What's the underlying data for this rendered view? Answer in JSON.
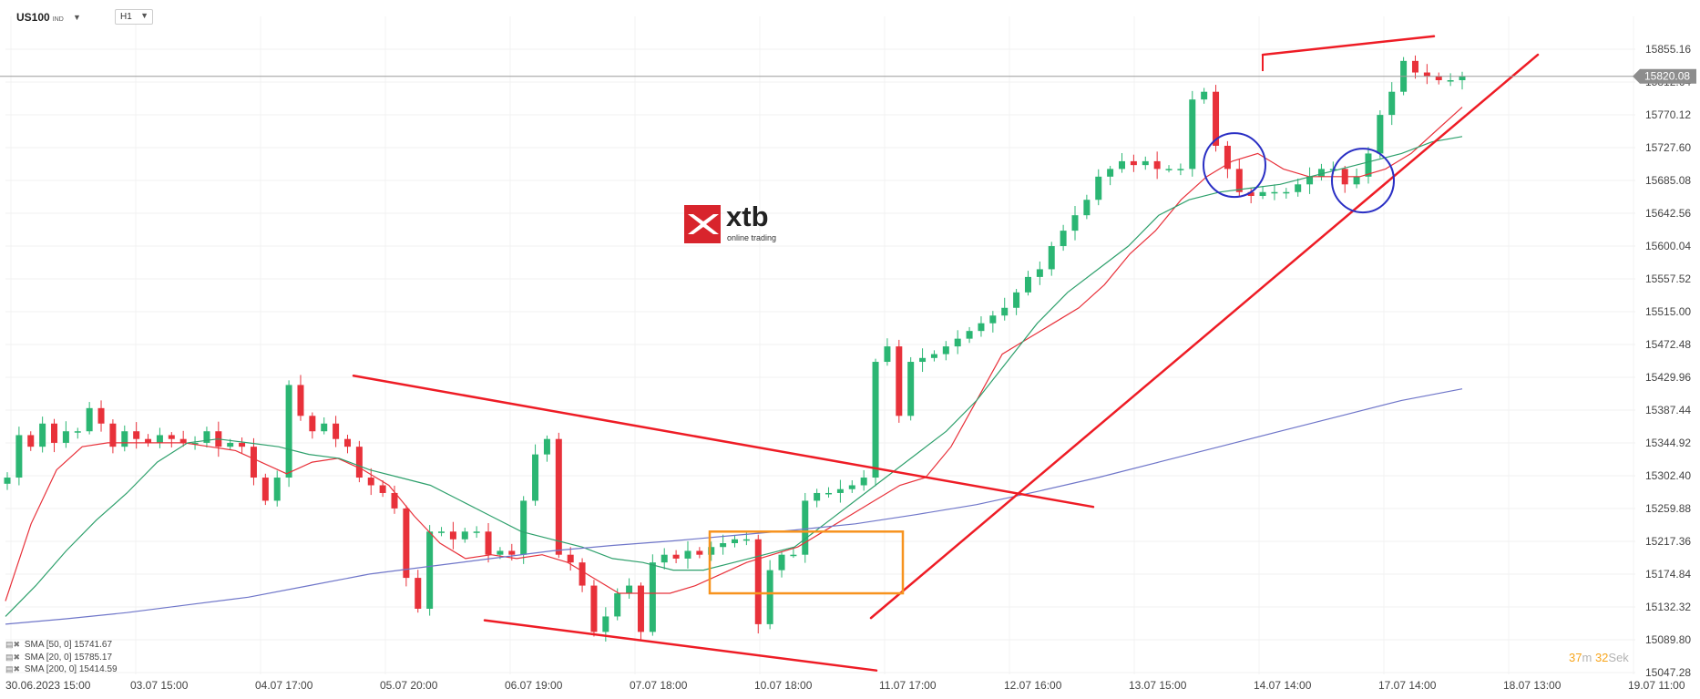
{
  "header": {
    "symbol": "US100",
    "exchange": "IND",
    "timeframe": "H1"
  },
  "legend": [
    {
      "label": "SMA [50, 0] 15741.67"
    },
    {
      "label": "SMA [20, 0] 15785.17"
    },
    {
      "label": "SMA [200, 0] 15414.59"
    }
  ],
  "timer": {
    "minutes": "37",
    "minutes_unit": "m",
    "seconds": "32",
    "seconds_unit": "Sek"
  },
  "logo": {
    "name": "xtb",
    "tagline": "online trading"
  },
  "colors": {
    "up": "#2bb673",
    "down": "#e8313a",
    "sma20": "#e8313a",
    "sma50": "#2ea06c",
    "sma200": "#6f76c9",
    "trendline": "#ee1c25",
    "box": "#f7931e",
    "circle": "#2a2fc4",
    "price_label_bg": "#8d8d8d"
  },
  "chart_data": {
    "type": "candlestick",
    "instrument": "US100",
    "timeframe": "H1",
    "current_price": 15820.08,
    "price_label": "15820.08",
    "ylim": [
      15047.28,
      15897.0
    ],
    "y_ticks": [
      "15855.16",
      "15812.64",
      "15770.12",
      "15727.60",
      "15685.08",
      "15642.56",
      "15600.04",
      "15557.52",
      "15515.00",
      "15472.48",
      "15429.96",
      "15387.44",
      "15344.92",
      "15302.40",
      "15259.88",
      "15217.36",
      "15174.84",
      "15132.32",
      "15089.80",
      "15047.28"
    ],
    "x_ticks": [
      "30.06.2023  15:00",
      "03.07  15:00",
      "04.07  17:00",
      "05.07  20:00",
      "06.07  19:00",
      "07.07  18:00",
      "10.07  18:00",
      "11.07  17:00",
      "12.07  16:00",
      "13.07  15:00",
      "14.07  14:00",
      "17.07  14:00",
      "18.07  13:00",
      "19.07  11:00"
    ],
    "ohlc_path": [
      15300,
      15355,
      15340,
      15370,
      15345,
      15360,
      15360,
      15390,
      15370,
      15340,
      15360,
      15350,
      15345,
      15355,
      15350,
      15345,
      15345,
      15360,
      15340,
      15345,
      15340,
      15300,
      15270,
      15300,
      15420,
      15380,
      15360,
      15370,
      15350,
      15340,
      15300,
      15290,
      15280,
      15260,
      15170,
      15130,
      15230,
      15230,
      15220,
      15230,
      15230,
      15200,
      15205,
      15200,
      15270,
      15330,
      15350,
      15200,
      15190,
      15160,
      15100,
      15120,
      15150,
      15160,
      15100,
      15190,
      15200,
      15195,
      15205,
      15200,
      15210,
      15215,
      15220,
      15220,
      15110,
      15180,
      15200,
      15200,
      15270,
      15280,
      15280,
      15285,
      15290,
      15300,
      15450,
      15470,
      15380,
      15450,
      15455,
      15460,
      15470,
      15480,
      15490,
      15500,
      15510,
      15520,
      15540,
      15560,
      15570,
      15600,
      15620,
      15640,
      15660,
      15690,
      15700,
      15710,
      15705,
      15710,
      15700,
      15700,
      15700,
      15790,
      15800,
      15730,
      15700,
      15670,
      15665,
      15670,
      15670,
      15670,
      15680,
      15690,
      15700,
      15700,
      15680,
      15690,
      15720,
      15770,
      15800,
      15840,
      15825,
      15820,
      15815,
      15815,
      15820
    ],
    "series": [
      {
        "name": "SMA [20, 0]",
        "values": [
          15140,
          15240,
          15310,
          15340,
          15345,
          15345,
          15345,
          15345,
          15340,
          15335,
          15320,
          15305,
          15320,
          15325,
          15310,
          15290,
          15250,
          15215,
          15195,
          15200,
          15195,
          15200,
          15190,
          15170,
          15150,
          15150,
          15150,
          15160,
          15175,
          15190,
          15200,
          15210,
          15230,
          15250,
          15270,
          15290,
          15300,
          15340,
          15400,
          15460,
          15480,
          15500,
          15520,
          15550,
          15590,
          15620,
          15660,
          15690,
          15710,
          15720,
          15700,
          15690,
          15690,
          15690,
          15700,
          15720,
          15750,
          15780
        ]
      },
      {
        "name": "SMA [50, 0]",
        "values": [
          15120,
          15160,
          15205,
          15245,
          15280,
          15320,
          15345,
          15350,
          15345,
          15340,
          15330,
          15325,
          15310,
          15300,
          15290,
          15270,
          15250,
          15230,
          15220,
          15210,
          15195,
          15190,
          15180,
          15180,
          15190,
          15200,
          15210,
          15240,
          15270,
          15300,
          15330,
          15360,
          15400,
          15450,
          15500,
          15540,
          15570,
          15600,
          15640,
          15660,
          15670,
          15675,
          15680,
          15690,
          15700,
          15710,
          15720,
          15735,
          15742
        ]
      },
      {
        "name": "SMA [200, 0]",
        "values": [
          15110,
          15117,
          15125,
          15135,
          15145,
          15160,
          15175,
          15185,
          15195,
          15205,
          15212,
          15218,
          15225,
          15232,
          15240,
          15252,
          15265,
          15282,
          15300,
          15320,
          15340,
          15360,
          15380,
          15400,
          15415
        ]
      }
    ],
    "annotations": [
      {
        "type": "trendline",
        "desc": "descending resistance from 05.07 high",
        "from": [
          15432,
          "05.07"
        ],
        "to": [
          15262,
          "12.07"
        ]
      },
      {
        "type": "trendline",
        "desc": "descending support lower channel",
        "from": [
          15115,
          "06.07"
        ],
        "to": [
          15050,
          "11.07"
        ]
      },
      {
        "type": "trendline",
        "desc": "rising support from 11.07 low",
        "from": [
          15118,
          "11.07"
        ],
        "to": [
          15848,
          "18.07"
        ]
      },
      {
        "type": "trendline",
        "desc": "higher highs",
        "from": [
          15848,
          "14.07"
        ],
        "to": [
          15872,
          "17.07"
        ]
      },
      {
        "type": "rectangle",
        "desc": "consolidation box",
        "y": [
          15150,
          15230
        ]
      },
      {
        "type": "circle",
        "desc": "retest zone 14.07",
        "y": 15705
      },
      {
        "type": "circle",
        "desc": "retest zone 17.07",
        "y": 15685
      }
    ]
  }
}
